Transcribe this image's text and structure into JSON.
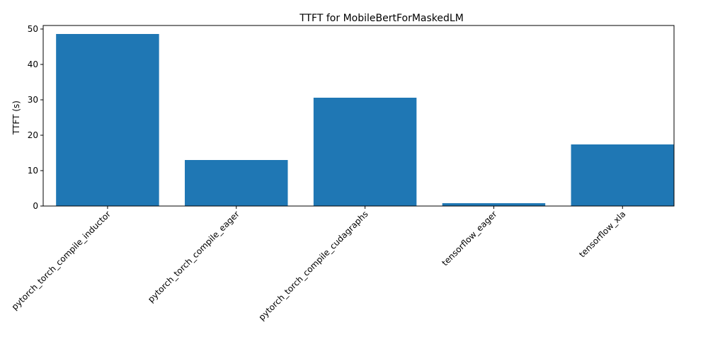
{
  "chart_data": {
    "type": "bar",
    "title": "TTFT for MobileBertForMaskedLM",
    "xlabel": "",
    "ylabel": "TTFT (s)",
    "categories": [
      "pytorch_torch_compile_inductor",
      "pytorch_torch_compile_eager",
      "pytorch_torch_compile_cudagraphs",
      "tensorflow_eager",
      "tensorflow_xla"
    ],
    "values": [
      48.6,
      13.0,
      30.6,
      0.8,
      17.4
    ],
    "ylim": [
      0,
      51
    ],
    "yticks": [
      0,
      10,
      20,
      30,
      40,
      50
    ],
    "bar_color": "#1f77b4",
    "xtick_rotation": 45,
    "grid": false,
    "legend": "none"
  }
}
